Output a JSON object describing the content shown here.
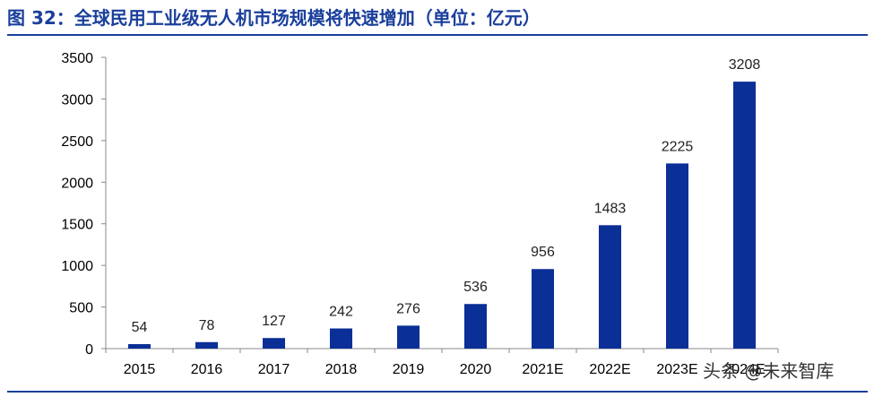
{
  "title": "图 32：全球民用工业级无人机市场规模将快速增加（单位：亿元）",
  "watermark": "头条 @未来智库",
  "chart_data": {
    "type": "bar",
    "categories": [
      "2015",
      "2016",
      "2017",
      "2018",
      "2019",
      "2020",
      "2021E",
      "2022E",
      "2023E",
      "2024E"
    ],
    "values": [
      54,
      78,
      127,
      242,
      276,
      536,
      956,
      1483,
      2225,
      3208
    ],
    "ylim": [
      0,
      3500
    ],
    "yticks": [
      0,
      500,
      1000,
      1500,
      2000,
      2500,
      3000,
      3500
    ],
    "bar_color": "#0a2f96",
    "legend": "none",
    "grid": false
  }
}
